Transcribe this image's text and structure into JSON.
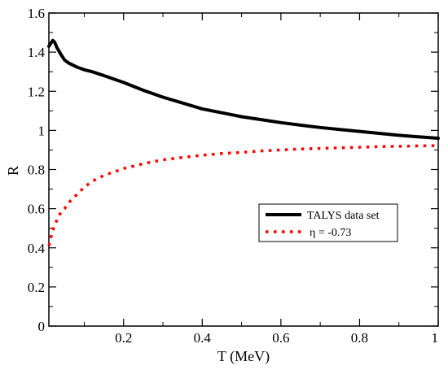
{
  "chart_data": {
    "type": "line",
    "xlabel": "T (MeV)",
    "ylabel": "R",
    "xlim": [
      0.01,
      1.0
    ],
    "ylim": [
      0,
      1.6
    ],
    "xticks": [
      0.2,
      0.4,
      0.6,
      0.8,
      1.0
    ],
    "xtick_labels": [
      "0.2",
      "0.4",
      "0.6",
      "0.8",
      "1"
    ],
    "yticks": [
      0,
      0.2,
      0.4,
      0.6,
      0.8,
      1.0,
      1.2,
      1.4,
      1.6
    ],
    "ytick_labels": [
      "0",
      "0.2",
      "0.4",
      "0.6",
      "0.8",
      "1",
      "1.2",
      "1.4",
      "1.6"
    ],
    "grid": false,
    "legend_position": "center-right",
    "series": [
      {
        "name": "TALYS data set",
        "color": "#000000",
        "style": "solid",
        "x": [
          0.01,
          0.015,
          0.02,
          0.025,
          0.03,
          0.04,
          0.05,
          0.06,
          0.07,
          0.08,
          0.1,
          0.12,
          0.15,
          0.2,
          0.25,
          0.3,
          0.35,
          0.4,
          0.45,
          0.5,
          0.55,
          0.6,
          0.65,
          0.7,
          0.75,
          0.8,
          0.85,
          0.9,
          0.95,
          1.0
        ],
        "y": [
          1.43,
          1.445,
          1.46,
          1.45,
          1.425,
          1.39,
          1.36,
          1.345,
          1.335,
          1.325,
          1.31,
          1.3,
          1.28,
          1.245,
          1.205,
          1.17,
          1.14,
          1.11,
          1.09,
          1.07,
          1.055,
          1.04,
          1.027,
          1.015,
          1.005,
          0.995,
          0.985,
          0.975,
          0.967,
          0.96
        ]
      },
      {
        "name": "η  = -0.73",
        "color": "#ff0000",
        "style": "dotted",
        "x": [
          0.01,
          0.015,
          0.02,
          0.03,
          0.04,
          0.05,
          0.06,
          0.08,
          0.1,
          0.12,
          0.15,
          0.2,
          0.25,
          0.3,
          0.35,
          0.4,
          0.45,
          0.5,
          0.55,
          0.6,
          0.65,
          0.7,
          0.75,
          0.8,
          0.85,
          0.9,
          0.95,
          1.0
        ],
        "y": [
          0.41,
          0.45,
          0.49,
          0.54,
          0.58,
          0.6,
          0.63,
          0.67,
          0.71,
          0.74,
          0.77,
          0.805,
          0.83,
          0.85,
          0.862,
          0.873,
          0.882,
          0.888,
          0.895,
          0.9,
          0.905,
          0.908,
          0.911,
          0.914,
          0.917,
          0.919,
          0.921,
          0.922
        ]
      }
    ]
  }
}
